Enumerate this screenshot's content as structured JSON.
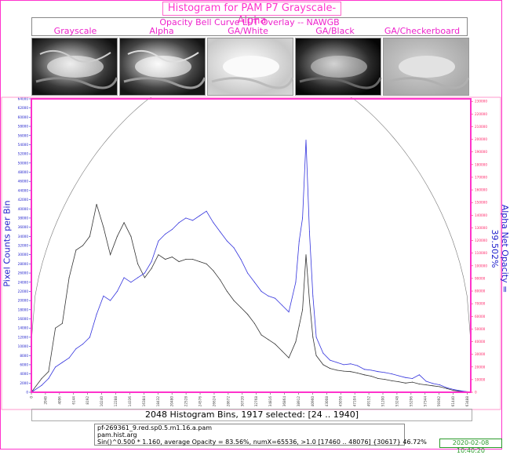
{
  "title": "Histogram for PAM P7 Grayscale-Alpha",
  "subtitle": "Opacity Bell Curve LUT Overlay -- NAWGB",
  "thumbnails": [
    {
      "label": "Grayscale",
      "bg": "gray"
    },
    {
      "label": "Alpha",
      "bg": "gray"
    },
    {
      "label": "GA/White",
      "bg": "white"
    },
    {
      "label": "GA/Black",
      "bg": "black"
    },
    {
      "label": "GA/Checkerboard",
      "bg": "checker"
    }
  ],
  "left_axis_title": "Pixel Counts per Bin",
  "right_axis_title": "Alpha Net Opacity = 39.502%",
  "xlabel": "2048 Histogram Bins, 1917 selected: [24 .. 1940]",
  "file_info": [
    "pf-269361_9.red.sp0.5.m1.16.a.pam",
    "pam.hist.arg",
    "Sin()^0.500 * 1.160, average Opacity = 83.56%, numX=65536, >1.0 [17460 .. 48076] {30617} 46.72%"
  ],
  "timestamp": "2020-02-08 10:40:20",
  "colors": {
    "accent": "#ff33cc",
    "left_axis": "#2222cc",
    "right_axis": "#ff2266",
    "blue_series": "#3333dd",
    "black_series": "#333333"
  },
  "chart_data": {
    "type": "line",
    "x_ticks": [
      0,
      2048,
      4096,
      6144,
      8192,
      10240,
      12288,
      14336,
      16384,
      18432,
      20480,
      22528,
      24576,
      26624,
      28672,
      30720,
      32768,
      34816,
      36864,
      38912,
      40960,
      43008,
      45056,
      47104,
      49152,
      51200,
      53248,
      55296,
      57344,
      59392,
      61440,
      63488
    ],
    "xlim": [
      0,
      64000
    ],
    "left_ylim": [
      0,
      64000
    ],
    "left_tick_step": 2000,
    "right_ylim": [
      0,
      232000
    ],
    "right_tick_step": 10000,
    "grid": false,
    "series": [
      {
        "color": "black",
        "axis": "left",
        "x": [
          0,
          1500,
          2500,
          3500,
          4500,
          5500,
          6500,
          7500,
          8500,
          9500,
          10500,
          11500,
          12500,
          13500,
          14500,
          15500,
          16500,
          17500,
          18500,
          19500,
          20500,
          21500,
          22500,
          23500,
          24500,
          25500,
          26500,
          27500,
          28500,
          29500,
          30500,
          31500,
          32500,
          33500,
          34500,
          35500,
          36500,
          37500,
          38500,
          39000,
          39500,
          40000,
          40500,
          41000,
          41500,
          42500,
          43500,
          44500,
          45500,
          46500,
          47500,
          48500,
          49500,
          50500,
          51500,
          52500,
          53500,
          54500,
          55500,
          56500,
          57500,
          58500,
          59500,
          60500,
          61500,
          62500,
          63500
        ],
        "y": [
          0,
          3000,
          4500,
          14000,
          15000,
          25000,
          31000,
          32000,
          34000,
          41000,
          36000,
          30000,
          34000,
          37000,
          34000,
          28000,
          25000,
          27000,
          30000,
          29000,
          29500,
          28500,
          29000,
          29000,
          28500,
          28000,
          26500,
          24500,
          22000,
          20000,
          18500,
          17000,
          15000,
          12500,
          11500,
          10500,
          9000,
          7500,
          11000,
          14500,
          18000,
          30000,
          20000,
          12000,
          8000,
          6000,
          5200,
          4800,
          4600,
          4500,
          4200,
          3800,
          3500,
          3000,
          2800,
          2500,
          2300,
          2000,
          2200,
          1800,
          1600,
          1400,
          1200,
          800,
          400,
          200,
          100
        ]
      },
      {
        "color": "blue",
        "axis": "left",
        "x": [
          0,
          1500,
          2500,
          3500,
          4500,
          5500,
          6500,
          7500,
          8500,
          9500,
          10500,
          11500,
          12500,
          13500,
          14500,
          15500,
          16500,
          17500,
          18500,
          19500,
          20500,
          21500,
          22500,
          23500,
          24500,
          25500,
          26500,
          27500,
          28500,
          29500,
          30500,
          31500,
          32500,
          33500,
          34500,
          35500,
          36500,
          37500,
          38500,
          39000,
          39500,
          40000,
          40500,
          41000,
          41500,
          42500,
          43500,
          44500,
          45500,
          46500,
          47500,
          48500,
          49500,
          50500,
          51500,
          52500,
          53500,
          54500,
          55500,
          56500,
          57500,
          58500,
          59500,
          60500,
          61500,
          62500,
          63500
        ],
        "y": [
          0,
          1500,
          3000,
          5500,
          6500,
          7500,
          9500,
          10500,
          12000,
          17000,
          21000,
          20000,
          22000,
          25000,
          24000,
          25000,
          26000,
          28500,
          33000,
          34500,
          35500,
          37000,
          38000,
          37500,
          38500,
          39500,
          37000,
          35000,
          33000,
          31500,
          29000,
          26000,
          24000,
          22000,
          21000,
          20500,
          19000,
          17500,
          24000,
          33000,
          38000,
          55000,
          35000,
          21000,
          12000,
          8500,
          7000,
          6500,
          6000,
          6200,
          5800,
          5000,
          4800,
          4500,
          4300,
          4000,
          3600,
          3200,
          3000,
          3800,
          2400,
          1900,
          1600,
          1000,
          600,
          300,
          100
        ]
      }
    ],
    "bell_curve": {
      "axis": "left",
      "peak": 64000,
      "base": 11000
    }
  }
}
